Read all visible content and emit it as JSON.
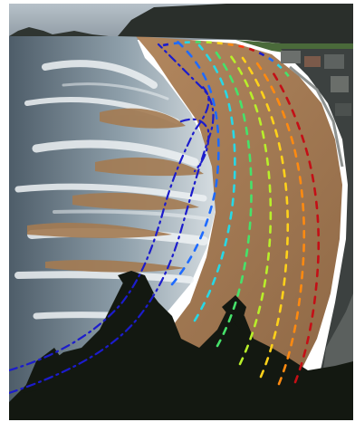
{
  "scene": {
    "description_colors": {
      "sky": "#a9b4bd",
      "sea_dark": "#5a6a76",
      "surf": "#e9eef1",
      "sand": "#b4875b",
      "sand_dark": "#8a6442",
      "cliff": "#2b2f2c",
      "foliage": "#151a12",
      "town": "#3a3f3e"
    }
  },
  "overlay": {
    "contour_palette": [
      "#1c1ccc",
      "#1f6bff",
      "#27d8e6",
      "#46e26a",
      "#b8ef2a",
      "#ffd21a",
      "#ff8a10",
      "#ff3a12",
      "#c40f16"
    ]
  }
}
